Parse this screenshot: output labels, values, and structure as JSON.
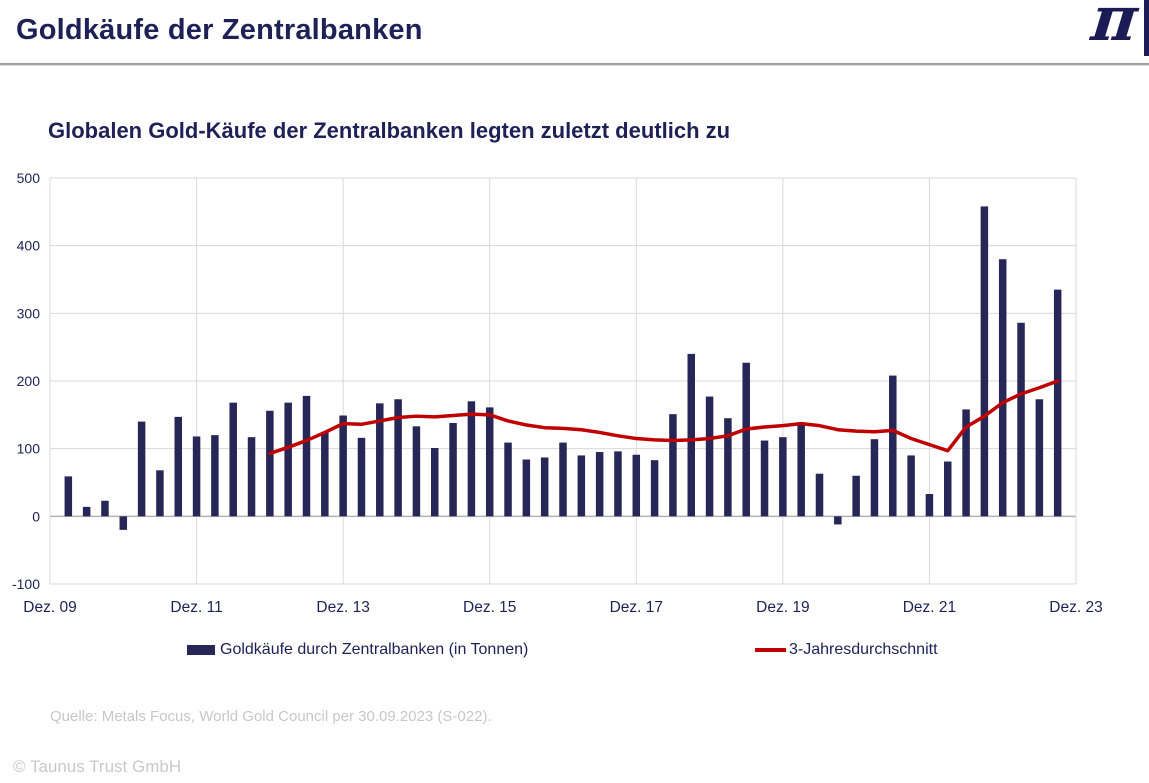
{
  "header": {
    "title": "Goldkäufe der Zentralbanken",
    "logo_glyph": "π"
  },
  "subtitle": "Globalen Gold-Käufe der Zentralbanken legten zuletzt deutlich zu",
  "legend": {
    "bars_label": "Goldkäufe durch Zentralbanken (in Tonnen)",
    "line_label": "3-Jahresdurchschnitt"
  },
  "source": "Quelle: Metals Focus, World Gold Council per 30.09.2023 (S-022).",
  "copyright": "© Taunus Trust GmbH",
  "colors": {
    "bars": "#262657",
    "line": "#c00000",
    "navy_text": "#1e2156",
    "gridline": "#d9d9d9",
    "zero_line": "#b3b3b3"
  },
  "chart_data": {
    "type": "bar",
    "title": "Globalen Gold-Käufe der Zentralbanken legten zuletzt deutlich zu",
    "xlabel": "",
    "ylabel": "",
    "unit": "Tonnen",
    "ylim": [
      -100,
      500
    ],
    "y_ticks": [
      500,
      400,
      300,
      200,
      100,
      0,
      -100
    ],
    "x_tick_labels": [
      "Dez. 09",
      "Dez. 11",
      "Dez. 13",
      "Dez. 15",
      "Dez. 17",
      "Dez. 19",
      "Dez. 21",
      "Dez. 23"
    ],
    "grid": true,
    "legend_position": "bottom",
    "periods": [
      "2010 Q1",
      "2010 Q2",
      "2010 Q3",
      "2010 Q4",
      "2011 Q1",
      "2011 Q2",
      "2011 Q3",
      "2011 Q4",
      "2012 Q1",
      "2012 Q2",
      "2012 Q3",
      "2012 Q4",
      "2013 Q1",
      "2013 Q2",
      "2013 Q3",
      "2013 Q4",
      "2014 Q1",
      "2014 Q2",
      "2014 Q3",
      "2014 Q4",
      "2015 Q1",
      "2015 Q2",
      "2015 Q3",
      "2015 Q4",
      "2016 Q1",
      "2016 Q2",
      "2016 Q3",
      "2016 Q4",
      "2017 Q1",
      "2017 Q2",
      "2017 Q3",
      "2017 Q4",
      "2018 Q1",
      "2018 Q2",
      "2018 Q3",
      "2018 Q4",
      "2019 Q1",
      "2019 Q2",
      "2019 Q3",
      "2019 Q4",
      "2020 Q1",
      "2020 Q2",
      "2020 Q3",
      "2020 Q4",
      "2021 Q1",
      "2021 Q2",
      "2021 Q3",
      "2021 Q4",
      "2022 Q1",
      "2022 Q2",
      "2022 Q3",
      "2022 Q4",
      "2023 Q1",
      "2023 Q2",
      "2023 Q3"
    ],
    "series": [
      {
        "name": "Goldkäufe durch Zentralbanken (in Tonnen)",
        "type": "bar",
        "color": "#262657",
        "values": [
          59,
          14,
          23,
          -20,
          140,
          68,
          147,
          118,
          120,
          168,
          117,
          156,
          168,
          178,
          125,
          149,
          116,
          167,
          173,
          133,
          101,
          138,
          170,
          161,
          109,
          84,
          87,
          109,
          90,
          95,
          96,
          91,
          83,
          151,
          240,
          177,
          145,
          227,
          112,
          117,
          139,
          63,
          -12,
          60,
          114,
          208,
          90,
          33,
          81,
          158,
          458,
          380,
          286,
          173,
          335
        ]
      },
      {
        "name": "3-Jahresdurchschnitt",
        "type": "line",
        "color": "#c00000",
        "start_period_index": 11,
        "values": [
          93,
          102,
          112,
          124,
          137,
          136,
          141,
          146,
          148,
          147,
          149,
          151,
          150,
          141,
          135,
          131,
          130,
          128,
          124,
          119,
          115,
          113,
          112,
          113,
          115,
          119,
          129,
          132,
          134,
          137,
          134,
          128,
          126,
          125,
          127,
          115,
          106,
          97,
          132,
          148,
          168,
          181,
          190,
          200
        ]
      }
    ]
  }
}
